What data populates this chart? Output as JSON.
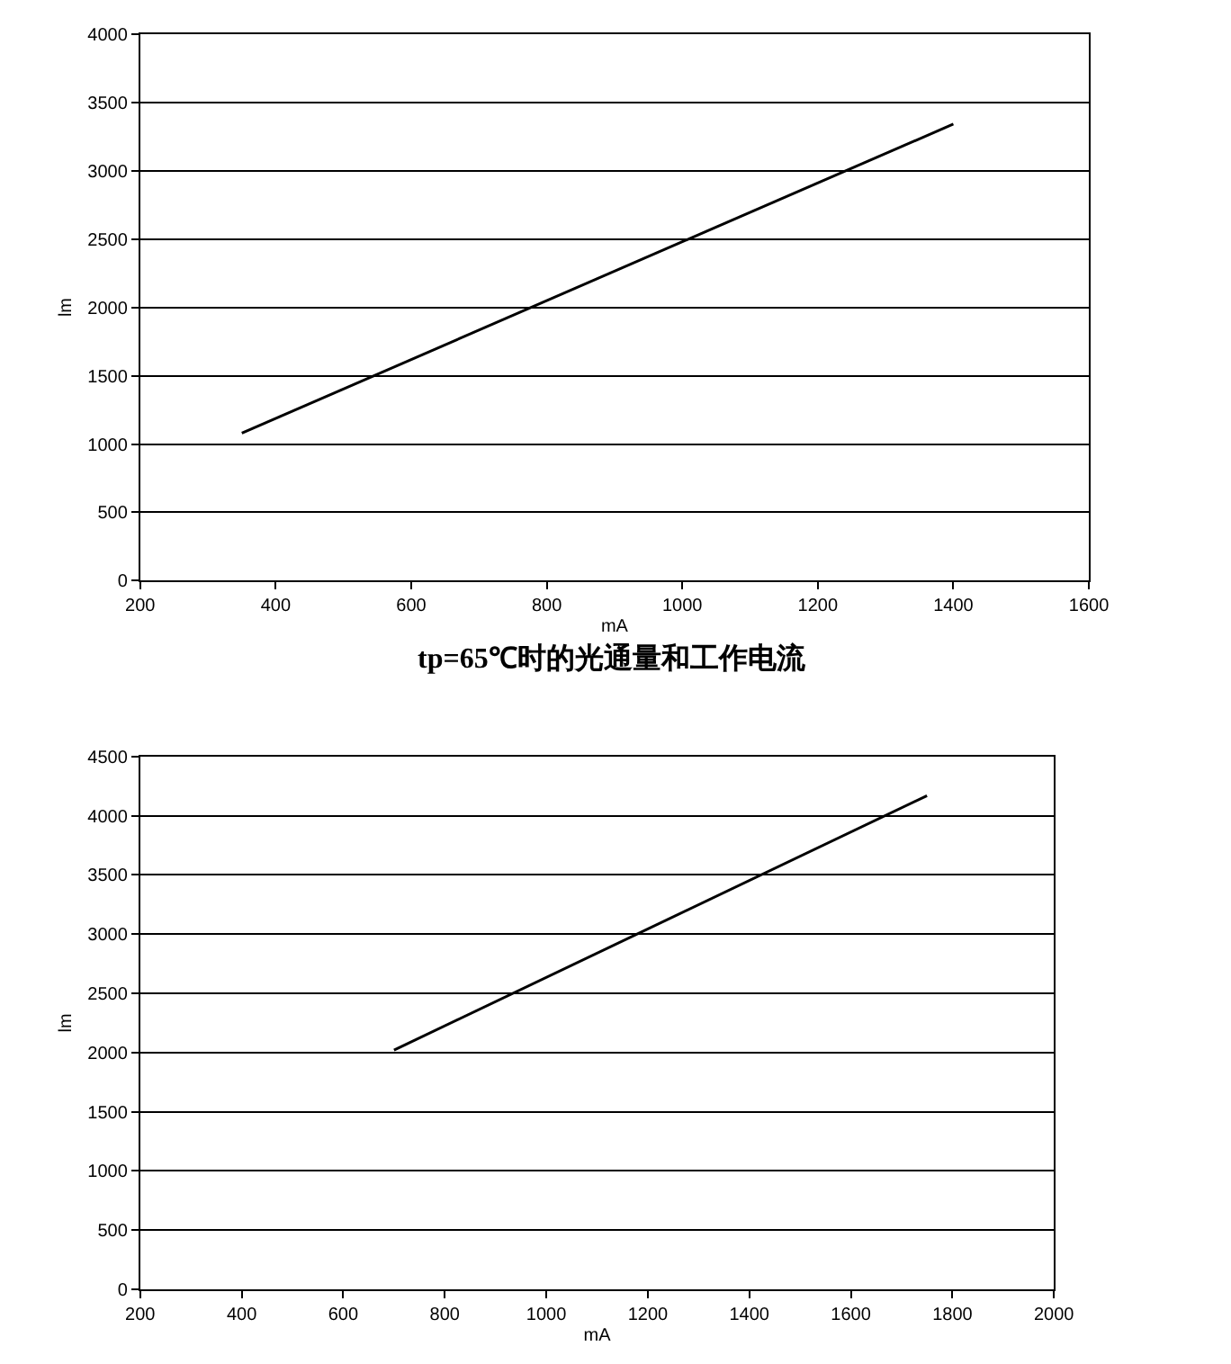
{
  "chart_data": [
    {
      "type": "line",
      "xlabel": "mA",
      "ylabel": "lm",
      "x": [
        350,
        1400
      ],
      "series": [
        {
          "color": "#000000",
          "values": [
            1080,
            3340
          ]
        }
      ],
      "xlim": [
        200,
        1600
      ],
      "xticks": [
        200,
        400,
        600,
        800,
        1000,
        1200,
        1400,
        1600
      ],
      "ylim": [
        0,
        4000
      ],
      "yticks": [
        0,
        500,
        1000,
        1500,
        2000,
        2500,
        3000,
        3500,
        4000
      ],
      "grid": "y",
      "marker": "none",
      "line_style": "solid",
      "annotations": [
        "tp=65℃时的光通量和工作电流"
      ]
    },
    {
      "type": "line",
      "xlabel": "mA",
      "ylabel": "lm",
      "x": [
        700,
        1750
      ],
      "series": [
        {
          "color": "#000000",
          "values": [
            2020,
            4170
          ]
        }
      ],
      "xlim": [
        200,
        2000
      ],
      "xticks": [
        200,
        400,
        600,
        800,
        1000,
        1200,
        1400,
        1600,
        1800,
        2000
      ],
      "ylim": [
        0,
        4500
      ],
      "yticks": [
        0,
        500,
        1000,
        1500,
        2000,
        2500,
        3000,
        3500,
        4000,
        4500
      ],
      "grid": "y",
      "marker": "none",
      "line_style": "solid"
    }
  ]
}
